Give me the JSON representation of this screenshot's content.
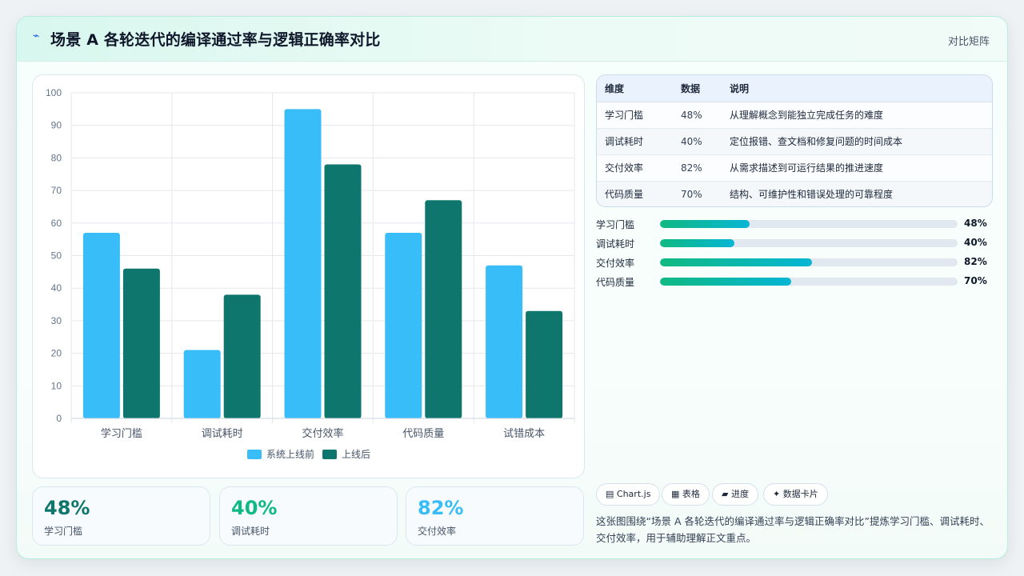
{
  "header": {
    "icon": "chart-line-icon",
    "title": "场景 A 各轮迭代的编译通过率与逻辑正确率对比",
    "right_label": "对比矩阵"
  },
  "colors": {
    "series_before": "#38bdf8",
    "series_after": "#0f766e",
    "stat_1": "#0f766e",
    "stat_2": "#10b981",
    "stat_3": "#38bdf8",
    "progress_start": "#10b981",
    "progress_end": "#06b6d4"
  },
  "chart_data": {
    "type": "bar",
    "categories": [
      "学习门槛",
      "调试耗时",
      "交付效率",
      "代码质量",
      "试错成本"
    ],
    "series": [
      {
        "name": "系统上线前",
        "values": [
          57,
          21,
          95,
          57,
          47
        ]
      },
      {
        "name": "上线后",
        "values": [
          46,
          38,
          78,
          67,
          33
        ]
      }
    ],
    "yticks": [
      "0",
      "10",
      "20",
      "30",
      "40",
      "50",
      "60",
      "70",
      "80",
      "90",
      "100"
    ],
    "ylim": [
      0,
      100
    ],
    "grid": true,
    "legend": "bottom"
  },
  "stats": [
    {
      "value": "48%",
      "label": "学习门槛"
    },
    {
      "value": "40%",
      "label": "调试耗时"
    },
    {
      "value": "82%",
      "label": "交付效率"
    }
  ],
  "table": {
    "headers": [
      "维度",
      "数据",
      "说明"
    ],
    "rows": [
      [
        "学习门槛",
        "48%",
        "从理解概念到能独立完成任务的难度"
      ],
      [
        "调试耗时",
        "40%",
        "定位报错、查文档和修复问题的时间成本"
      ],
      [
        "交付效率",
        "82%",
        "从需求描述到可运行结果的推进速度"
      ],
      [
        "代码质量",
        "70%",
        "结构、可维护性和错误处理的可靠程度"
      ]
    ]
  },
  "progress": [
    {
      "label": "学习门槛",
      "value": "48%",
      "fraction": 0.3
    },
    {
      "label": "调试耗时",
      "value": "40%",
      "fraction": 0.25
    },
    {
      "label": "交付效率",
      "value": "82%",
      "fraction": 0.51
    },
    {
      "label": "代码质量",
      "value": "70%",
      "fraction": 0.44
    }
  ],
  "tags": [
    {
      "icon": "chart-icon",
      "glyph": "▤",
      "label": "Chart.js"
    },
    {
      "icon": "table-icon",
      "glyph": "▦",
      "label": "表格"
    },
    {
      "icon": "progress-icon",
      "glyph": "▰",
      "label": "进度"
    },
    {
      "icon": "sparkle-icon",
      "glyph": "✦",
      "label": "数据卡片"
    }
  ],
  "description": "这张图围绕“场景 A 各轮迭代的编译通过率与逻辑正确率对比”提炼学习门槛、调试耗时、交付效率，用于辅助理解正文重点。"
}
